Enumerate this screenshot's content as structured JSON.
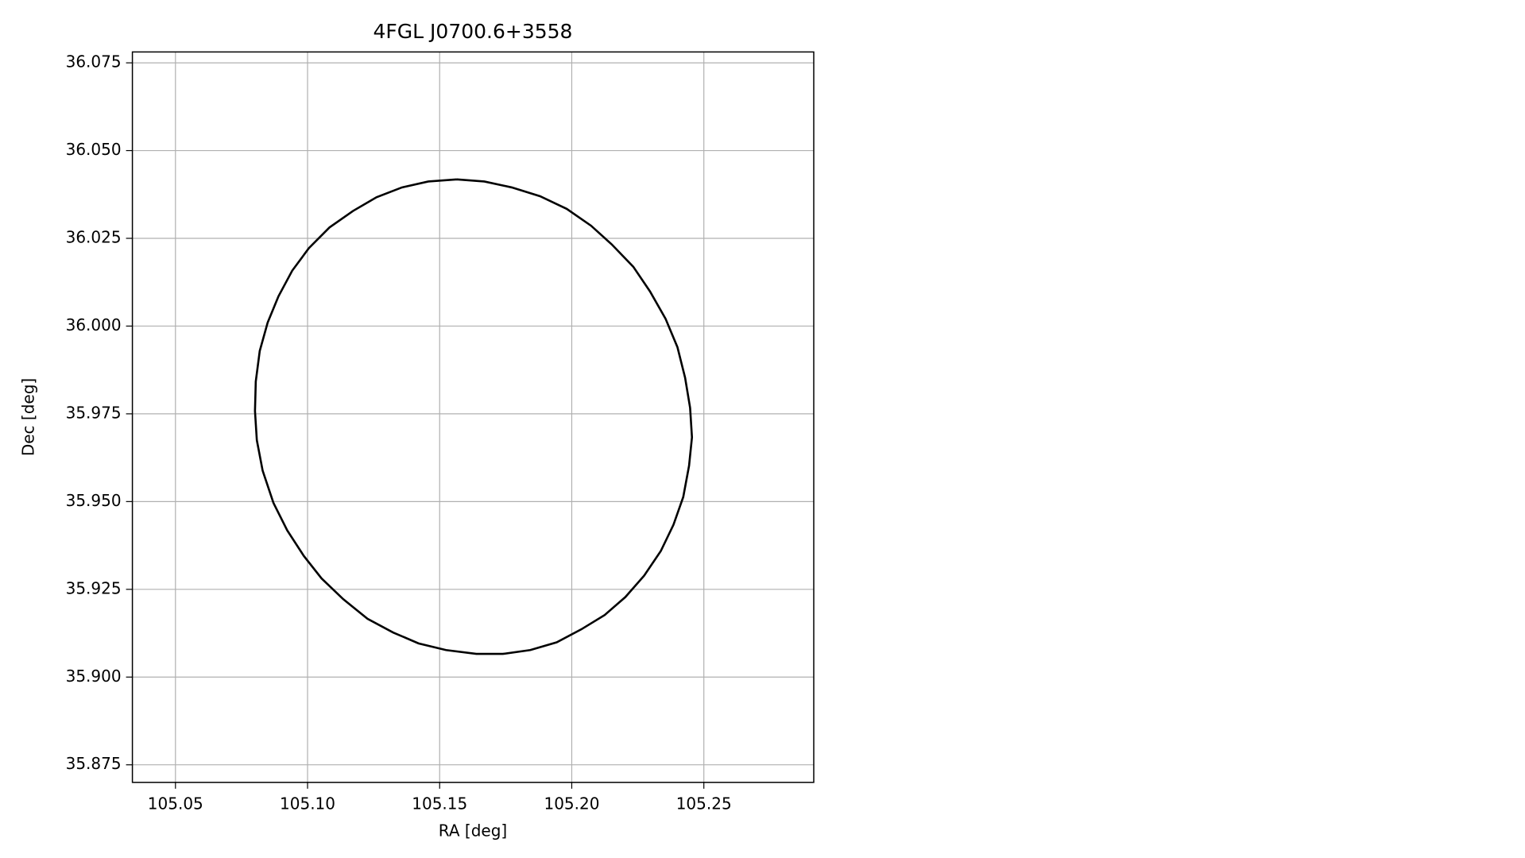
{
  "chart_data": {
    "type": "line",
    "title": "4FGL J0700.6+3558",
    "xlabel": "RA [deg]",
    "ylabel": "Dec [deg]",
    "color": "#000000",
    "grid": true,
    "x": [
      105.1565,
      105.1669,
      105.1773,
      105.188,
      105.1981,
      105.2073,
      105.2151,
      105.2233,
      105.2296,
      105.2355,
      105.24,
      105.2429,
      105.2448,
      105.2455,
      105.2444,
      105.2422,
      105.2385,
      105.2337,
      105.2274,
      105.2203,
      105.2125,
      105.2036,
      105.1943,
      105.1843,
      105.1739,
      105.1639,
      105.1524,
      105.142,
      105.1324,
      105.1227,
      105.1135,
      105.1053,
      105.0986,
      105.0923,
      105.0871,
      105.083,
      105.0808,
      105.0801,
      105.0804,
      105.0819,
      105.0849,
      105.089,
      105.0942,
      105.1005,
      105.1083,
      105.1172,
      105.1261,
      105.1357,
      105.1457,
      105.1565
    ],
    "values": [
      36.0418,
      36.0412,
      36.0395,
      36.037,
      36.0334,
      36.0286,
      36.0233,
      36.0169,
      36.0099,
      36.0021,
      35.994,
      35.9853,
      35.9767,
      35.9683,
      35.9602,
      35.9513,
      35.9434,
      35.9359,
      35.9289,
      35.9228,
      35.9177,
      35.9136,
      35.9099,
      35.9077,
      35.9066,
      35.9066,
      35.9077,
      35.9096,
      35.9127,
      35.9166,
      35.9222,
      35.9281,
      35.9345,
      35.9418,
      35.9496,
      35.9588,
      35.9675,
      35.9758,
      35.9842,
      35.9929,
      36.001,
      36.0085,
      36.0158,
      36.0222,
      36.0281,
      36.0328,
      36.0367,
      36.0395,
      36.0412,
      36.0418
    ],
    "xlim": [
      105.0337,
      105.2916
    ],
    "ylim": [
      35.87,
      36.0781
    ],
    "xticks": [
      {
        "value": 105.05,
        "label": "105.05"
      },
      {
        "value": 105.1,
        "label": "105.10"
      },
      {
        "value": 105.15,
        "label": "105.15"
      },
      {
        "value": 105.2,
        "label": "105.20"
      },
      {
        "value": 105.25,
        "label": "105.25"
      }
    ],
    "yticks": [
      {
        "value": 35.875,
        "label": "35.875"
      },
      {
        "value": 35.9,
        "label": "35.900"
      },
      {
        "value": 35.925,
        "label": "35.925"
      },
      {
        "value": 35.95,
        "label": "35.950"
      },
      {
        "value": 35.975,
        "label": "35.975"
      },
      {
        "value": 36.0,
        "label": "36.000"
      },
      {
        "value": 36.025,
        "label": "36.025"
      },
      {
        "value": 36.05,
        "label": "36.050"
      },
      {
        "value": 36.075,
        "label": "36.075"
      }
    ]
  }
}
